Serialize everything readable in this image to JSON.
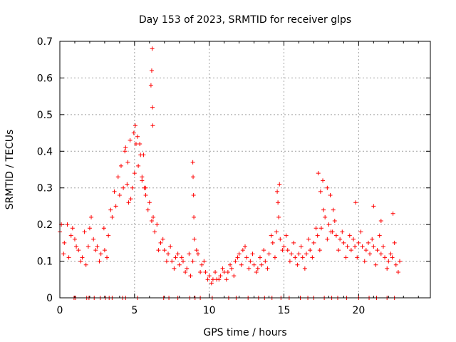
{
  "chart_data": {
    "type": "scatter",
    "title": "Day 153 of 2023, SRMTID for receiver glps",
    "xlabel": "GPS time / hours",
    "ylabel": "SRMTID / TECUs",
    "xlim": [
      0,
      24.8
    ],
    "ylim": [
      0,
      0.7
    ],
    "xticks": [
      0,
      5,
      10,
      15,
      20
    ],
    "yticks": [
      0,
      0.1,
      0.2,
      0.3,
      0.4,
      0.5,
      0.6,
      0.7
    ],
    "grid": true,
    "marker": "+",
    "color": "#ff0000",
    "series": [
      {
        "name": "SRMTID",
        "x": [
          0.0,
          0.25,
          0.5,
          0.75,
          1.0,
          1.25,
          1.5,
          1.75,
          2.0,
          2.25,
          2.5,
          2.75,
          3.0,
          3.25,
          3.5,
          3.75,
          4.0,
          4.25,
          4.5,
          4.75,
          5.0,
          5.25,
          5.5,
          5.75,
          6.0,
          6.25,
          6.5,
          6.75,
          7.0,
          7.25,
          7.5,
          7.75,
          8.0,
          8.25,
          8.5,
          8.75,
          9.0,
          9.25,
          9.5,
          9.75,
          10.0,
          10.25,
          10.5,
          10.75,
          11.0,
          11.25,
          11.5,
          11.75,
          12.0,
          12.25,
          12.5,
          12.75,
          13.0,
          13.25,
          13.5,
          13.75,
          14.0,
          14.25,
          14.5,
          14.75,
          15.0,
          15.25,
          15.5,
          15.75,
          16.0,
          16.25,
          16.5,
          16.75,
          17.0,
          17.25,
          17.5,
          17.75,
          18.0,
          18.25,
          18.5,
          18.75,
          19.0,
          19.25,
          19.5,
          19.75,
          20.0,
          20.25,
          20.5,
          20.75,
          21.0,
          21.25,
          21.5,
          21.75,
          22.0,
          22.25,
          22.5,
          22.75,
          0.1,
          0.3,
          0.6,
          0.85,
          1.1,
          1.4,
          1.65,
          1.9,
          2.1,
          2.4,
          2.65,
          2.95,
          3.15,
          3.4,
          3.65,
          3.9,
          4.1,
          4.35,
          4.6,
          4.85,
          5.1,
          5.4,
          5.65,
          5.9,
          6.15,
          6.35,
          6.6,
          6.9,
          7.15,
          7.4,
          7.65,
          7.9,
          8.15,
          8.4,
          8.65,
          8.9,
          9.15,
          9.4,
          9.65,
          9.9,
          10.15,
          10.4,
          10.65,
          10.9,
          11.15,
          11.4,
          11.65,
          11.9,
          12.15,
          12.4,
          12.65,
          12.9,
          13.15,
          13.4,
          13.65,
          13.9,
          14.15,
          14.4,
          14.65,
          14.9,
          15.15,
          15.4,
          15.65,
          15.9,
          16.15,
          16.4,
          16.65,
          16.9,
          17.15,
          17.4,
          17.65,
          17.9,
          18.15,
          18.4,
          18.65,
          18.9,
          19.15,
          19.4,
          19.65,
          19.9,
          20.15,
          20.4,
          20.65,
          20.9,
          21.15,
          21.4,
          21.65,
          21.9,
          22.15,
          22.4,
          22.65,
          4.4,
          4.55,
          4.7,
          4.95,
          5.05,
          5.2,
          5.35,
          5.5,
          5.6,
          5.75,
          6.1,
          6.15,
          6.18,
          6.2,
          6.22,
          8.9,
          8.92,
          8.95,
          8.97,
          14.55,
          14.6,
          14.7,
          17.3,
          17.45,
          17.6,
          17.9,
          18.1,
          18.3,
          19.8,
          21.0,
          21.5,
          22.3,
          0.95,
          1.05,
          1.8,
          1.95,
          2.3,
          2.7,
          3.05,
          3.3,
          3.5,
          4.2,
          4.4,
          5.2,
          6.95,
          7.3,
          7.9,
          8.7,
          9.05,
          9.4,
          10.2,
          11.3,
          11.8,
          12.6,
          13.3,
          13.7,
          14.2,
          14.8,
          15.35,
          16.1,
          16.6,
          17.0,
          17.7,
          18.2,
          18.6,
          19.2,
          20.0,
          20.7,
          21.2,
          21.9,
          22.4
        ],
        "y": [
          0.18,
          0.12,
          0.2,
          0.17,
          0.16,
          0.13,
          0.11,
          0.09,
          0.19,
          0.16,
          0.14,
          0.12,
          0.13,
          0.17,
          0.22,
          0.25,
          0.28,
          0.3,
          0.31,
          0.27,
          0.34,
          0.36,
          0.32,
          0.28,
          0.26,
          0.22,
          0.2,
          0.15,
          0.13,
          0.12,
          0.1,
          0.11,
          0.09,
          0.1,
          0.08,
          0.06,
          0.16,
          0.12,
          0.09,
          0.07,
          0.06,
          0.05,
          0.05,
          0.06,
          0.07,
          0.07,
          0.08,
          0.1,
          0.12,
          0.13,
          0.11,
          0.1,
          0.09,
          0.08,
          0.09,
          0.1,
          0.12,
          0.15,
          0.18,
          0.16,
          0.14,
          0.13,
          0.12,
          0.11,
          0.12,
          0.11,
          0.12,
          0.13,
          0.15,
          0.17,
          0.19,
          0.22,
          0.2,
          0.18,
          0.17,
          0.16,
          0.15,
          0.14,
          0.13,
          0.14,
          0.15,
          0.14,
          0.13,
          0.12,
          0.14,
          0.13,
          0.12,
          0.11,
          0.1,
          0.11,
          0.09,
          0.1,
          0.2,
          0.15,
          0.11,
          0.19,
          0.14,
          0.1,
          0.18,
          0.14,
          0.22,
          0.13,
          0.1,
          0.19,
          0.11,
          0.24,
          0.29,
          0.33,
          0.36,
          0.4,
          0.26,
          0.3,
          0.42,
          0.39,
          0.3,
          0.24,
          0.21,
          0.18,
          0.13,
          0.16,
          0.1,
          0.14,
          0.08,
          0.12,
          0.11,
          0.07,
          0.12,
          0.1,
          0.13,
          0.07,
          0.1,
          0.05,
          0.04,
          0.07,
          0.05,
          0.08,
          0.05,
          0.09,
          0.06,
          0.11,
          0.09,
          0.14,
          0.08,
          0.12,
          0.07,
          0.11,
          0.13,
          0.08,
          0.17,
          0.11,
          0.22,
          0.13,
          0.17,
          0.1,
          0.15,
          0.09,
          0.14,
          0.08,
          0.16,
          0.11,
          0.19,
          0.13,
          0.24,
          0.16,
          0.18,
          0.21,
          0.13,
          0.18,
          0.11,
          0.17,
          0.16,
          0.11,
          0.18,
          0.1,
          0.15,
          0.16,
          0.09,
          0.17,
          0.14,
          0.08,
          0.12,
          0.15,
          0.07,
          0.41,
          0.37,
          0.43,
          0.45,
          0.47,
          0.44,
          0.42,
          0.33,
          0.39,
          0.3,
          0.58,
          0.62,
          0.68,
          0.52,
          0.47,
          0.37,
          0.33,
          0.28,
          0.22,
          0.29,
          0.26,
          0.31,
          0.34,
          0.29,
          0.32,
          0.3,
          0.28,
          0.24,
          0.26,
          0.25,
          0.21,
          0.23,
          0.0,
          0.0,
          0.0,
          0.0,
          0.0,
          0.0,
          0.0,
          0.0,
          0.0,
          0.0,
          0.0,
          0.0,
          0.0,
          0.0,
          0.0,
          0.0,
          0.0,
          0.0,
          0.0,
          0.0,
          0.0,
          0.0,
          0.0,
          0.0,
          0.0,
          0.0,
          0.0,
          0.0,
          0.0,
          0.0,
          0.0,
          0.0,
          0.0,
          0.0,
          0.0,
          0.0,
          0.0,
          0.0,
          0.0
        ]
      }
    ]
  }
}
